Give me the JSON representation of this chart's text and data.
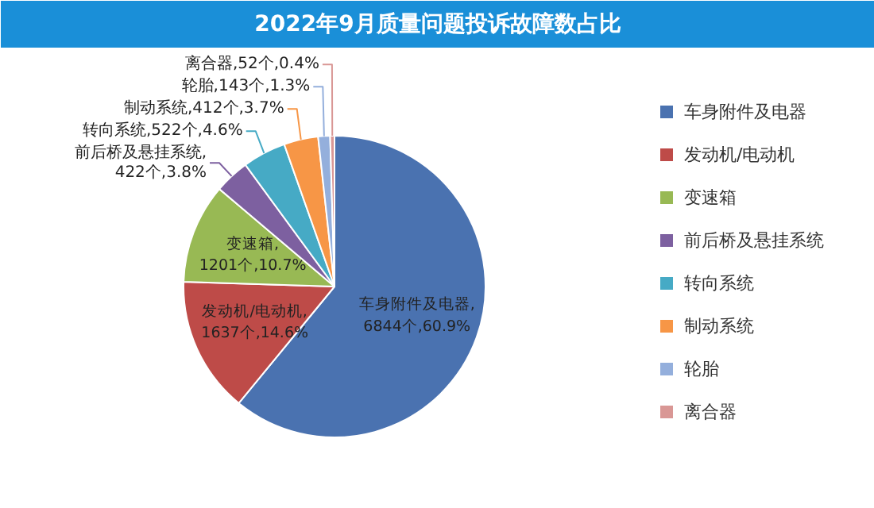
{
  "chart_data": {
    "type": "pie",
    "title": "2022年9月质量问题投诉故障数占比",
    "categories": [
      "车身附件及电器",
      "发动机/电动机",
      "变速箱",
      "前后桥及悬挂系统",
      "转向系统",
      "制动系统",
      "轮胎",
      "离合器"
    ],
    "values": [
      6844,
      1637,
      1201,
      422,
      522,
      412,
      143,
      52
    ],
    "colors": [
      "#4a72b0",
      "#be4b48",
      "#98b954",
      "#7d60a0",
      "#46aac5",
      "#f79646",
      "#94afdc",
      "#d99795"
    ],
    "value_labels": [
      "车身附件及电器,\n6844个,60.9%",
      "发动机/电动机,\n1637个,14.6%",
      "变速箱,\n1201个,10.7%",
      "前后桥及悬挂系统,\n422个,3.8%",
      "转向系统,522个,4.6%",
      "制动系统,412个,3.7%",
      "轮胎,143个,1.3%",
      "离合器,52个,0.4%"
    ],
    "legend": "right"
  }
}
